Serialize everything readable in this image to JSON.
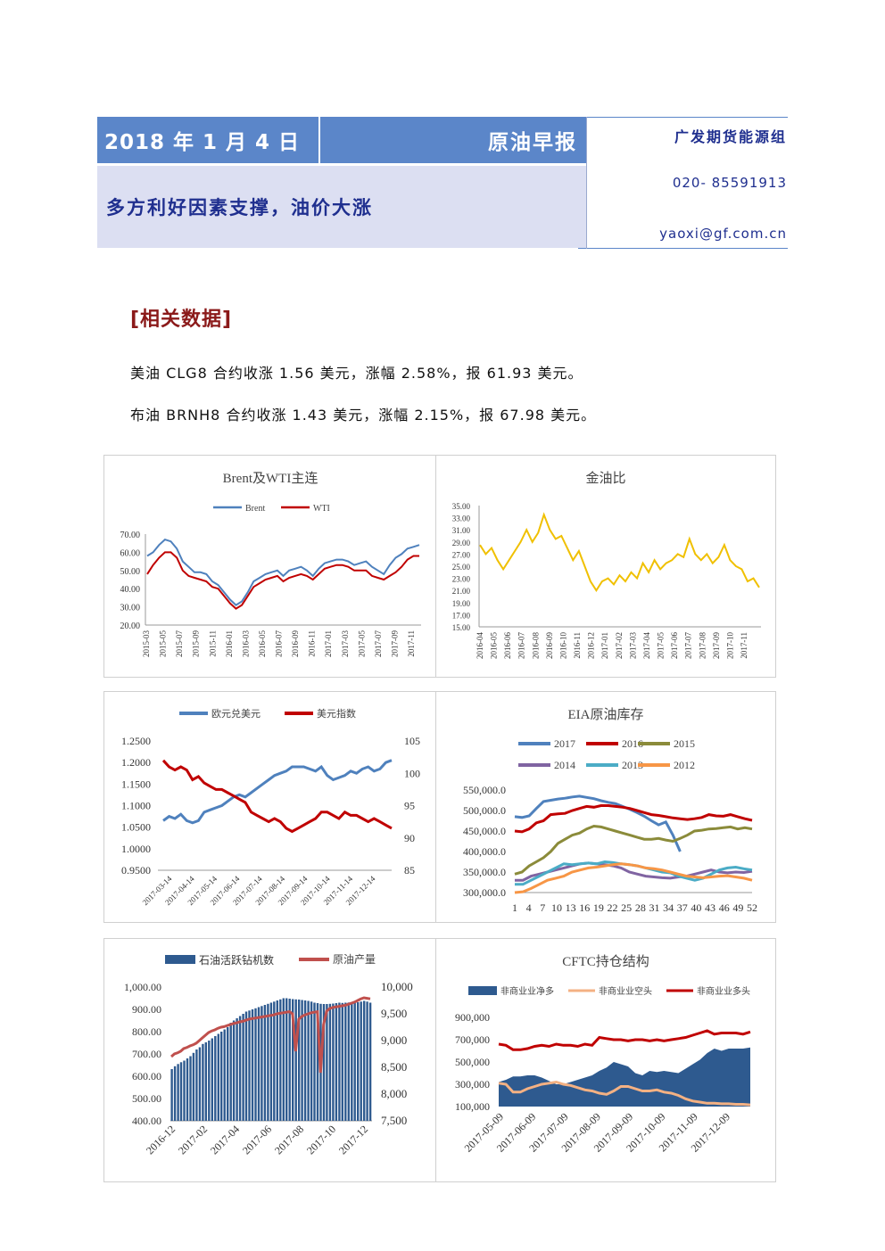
{
  "header": {
    "date": "2018 年 1 月 4 日",
    "title": "原油早报",
    "subtitle": "多方利好因素支撑，油价大涨",
    "org": "广发期货能源组",
    "phone": "020- 85591913",
    "email": "yaoxi@gf.com.cn",
    "colors": {
      "bar": "#5b86c9",
      "sub_bg": "#dcdff2",
      "text": "#1f2f8f"
    }
  },
  "section": {
    "title": "[相关数据]"
  },
  "paragraphs": [
    "美油 CLG8 合约收涨 1.56 美元，涨幅 2.58%，报 61.93 美元。",
    "布油 BRNH8 合约收涨 1.43 美元，涨幅 2.15%，报 67.98 美元。"
  ],
  "chart_data": [
    {
      "type": "line",
      "title": "Brent及WTI主连",
      "series": [
        {
          "name": "Brent",
          "color": "#4f81bd",
          "values": [
            58,
            60,
            64,
            67,
            66,
            62,
            55,
            52,
            49,
            49,
            48,
            44,
            42,
            38,
            34,
            31,
            33,
            38,
            44,
            46,
            48,
            49,
            50,
            47,
            50,
            51,
            52,
            50,
            47,
            51,
            54,
            55,
            56,
            56,
            55,
            53,
            54,
            55,
            52,
            50,
            48,
            53,
            57,
            59,
            62,
            63,
            64
          ]
        },
        {
          "name": "WTI",
          "color": "#c00000",
          "values": [
            48,
            53,
            57,
            60,
            60,
            57,
            50,
            47,
            46,
            45,
            44,
            41,
            40,
            36,
            32,
            29,
            31,
            36,
            41,
            43,
            45,
            46,
            47,
            44,
            46,
            47,
            48,
            47,
            45,
            48,
            51,
            52,
            53,
            53,
            52,
            50,
            50,
            50,
            47,
            46,
            45,
            47,
            49,
            52,
            56,
            58,
            58
          ]
        }
      ],
      "x_ticks": [
        "2015-03",
        "2015-05",
        "2015-07",
        "2015-09",
        "2015-11",
        "2016-01",
        "2016-03",
        "2016-05",
        "2016-07",
        "2016-09",
        "2016-11",
        "2017-01",
        "2017-03",
        "2017-05",
        "2017-07",
        "2017-09",
        "2017-11"
      ],
      "y_ticks": [
        "70.00",
        "60.00",
        "50.00",
        "40.00",
        "30.00",
        "20.00"
      ],
      "ylim": [
        20,
        70
      ],
      "legend": "top"
    },
    {
      "type": "line",
      "title": "金油比",
      "series": [
        {
          "name": "",
          "color": "#f0c000",
          "values": [
            28.5,
            27,
            28,
            26,
            24.5,
            26,
            27.5,
            29,
            31,
            29,
            30.5,
            33.5,
            31,
            29.5,
            30,
            28,
            26,
            27.5,
            25,
            22.5,
            21,
            22.5,
            23,
            22,
            23.5,
            22.5,
            24,
            23,
            25.5,
            24,
            26,
            24.5,
            25.5,
            26,
            27,
            26.5,
            29.5,
            27,
            26,
            27,
            25.5,
            26.5,
            28.5,
            26,
            25,
            24.5,
            22.5,
            23,
            21.5
          ]
        }
      ],
      "x_ticks": [
        "2016-04",
        "2016-05",
        "2016-06",
        "2016-07",
        "2016-08",
        "2016-09",
        "2016-10",
        "2016-11",
        "2016-12",
        "2017-01",
        "2017-02",
        "2017-03",
        "2017-04",
        "2017-05",
        "2017-06",
        "2017-07",
        "2017-08",
        "2017-09",
        "2017-10",
        "2017-11"
      ],
      "y_ticks": [
        "35.00",
        "33.00",
        "31.00",
        "29.00",
        "27.00",
        "25.00",
        "23.00",
        "21.00",
        "19.00",
        "17.00",
        "15.00"
      ],
      "ylim": [
        15,
        35
      ]
    },
    {
      "type": "line",
      "title": "",
      "series": [
        {
          "name": "欧元兑美元",
          "color": "#4f81bd",
          "axis": "left",
          "values": [
            1.065,
            1.075,
            1.07,
            1.08,
            1.065,
            1.06,
            1.065,
            1.085,
            1.09,
            1.095,
            1.1,
            1.11,
            1.12,
            1.125,
            1.12,
            1.13,
            1.14,
            1.15,
            1.16,
            1.17,
            1.175,
            1.18,
            1.19,
            1.19,
            1.19,
            1.185,
            1.18,
            1.19,
            1.17,
            1.16,
            1.165,
            1.17,
            1.18,
            1.175,
            1.185,
            1.19,
            1.18,
            1.185,
            1.2,
            1.205
          ]
        },
        {
          "name": "美元指数",
          "color": "#c00000",
          "axis": "right",
          "values": [
            102,
            101,
            100.5,
            101,
            100.5,
            99,
            99.5,
            98.5,
            98,
            97.5,
            97.5,
            97,
            96.5,
            96,
            95.5,
            94,
            93.5,
            93,
            92.5,
            93,
            92.5,
            91.5,
            91,
            91.5,
            92,
            92.5,
            93,
            94,
            94,
            93.5,
            93,
            94,
            93.5,
            93.5,
            93,
            92.5,
            93,
            92.5,
            92,
            91.5
          ]
        }
      ],
      "x_ticks": [
        "2017-03-14",
        "2017-04-14",
        "2017-05-14",
        "2017-06-14",
        "2017-07-14",
        "2017-08-14",
        "2017-09-14",
        "2017-10-14",
        "2017-11-14",
        "2017-12-14"
      ],
      "y_ticks_left": [
        "1.2500",
        "1.2000",
        "1.1500",
        "1.1000",
        "1.0500",
        "1.0000",
        "0.9500"
      ],
      "y_ticks_right": [
        "105",
        "100",
        "95",
        "90",
        "85"
      ],
      "ylim_left": [
        0.95,
        1.25
      ],
      "ylim_right": [
        85,
        105
      ],
      "legend": "top"
    },
    {
      "type": "line",
      "title": "EIA原油库存",
      "series": [
        {
          "name": "2017",
          "color": "#4f81bd",
          "values": [
            485,
            483,
            487,
            505,
            522,
            525,
            528,
            530,
            533,
            535,
            532,
            529,
            524,
            520,
            517,
            510,
            503,
            495,
            486,
            475,
            465,
            472,
            440,
            400,
            null,
            null,
            null,
            null,
            null,
            null,
            null,
            null,
            null,
            null
          ]
        },
        {
          "name": "2016",
          "color": "#c00000",
          "values": [
            450,
            448,
            455,
            470,
            475,
            490,
            492,
            493,
            500,
            505,
            510,
            508,
            512,
            512,
            510,
            508,
            505,
            500,
            495,
            490,
            488,
            485,
            482,
            480,
            478,
            480,
            483,
            490,
            487,
            486,
            490,
            485,
            480,
            476
          ]
        },
        {
          "name": "2015",
          "color": "#8b8b3a",
          "values": [
            345,
            350,
            365,
            375,
            385,
            400,
            420,
            430,
            440,
            445,
            455,
            462,
            460,
            455,
            450,
            445,
            440,
            435,
            430,
            430,
            432,
            428,
            425,
            432,
            440,
            450,
            452,
            455,
            456,
            458,
            460,
            455,
            458,
            455
          ]
        },
        {
          "name": "2014",
          "color": "#8064a2",
          "values": [
            330,
            330,
            340,
            345,
            350,
            355,
            360,
            365,
            370,
            372,
            370,
            368,
            365,
            360,
            350,
            345,
            340,
            338,
            336,
            335,
            338,
            340,
            345,
            350,
            355,
            350,
            348,
            350,
            349,
            352
          ]
        },
        {
          "name": "2013",
          "color": "#4bacc6",
          "values": [
            320,
            320,
            330,
            340,
            350,
            360,
            370,
            368,
            370,
            372,
            370,
            375,
            373,
            370,
            368,
            365,
            360,
            355,
            350,
            348,
            340,
            335,
            330,
            335,
            345,
            355,
            360,
            362,
            358,
            355
          ]
        },
        {
          "name": "2012",
          "color": "#f79646",
          "values": [
            300,
            302,
            310,
            320,
            330,
            335,
            340,
            350,
            355,
            360,
            362,
            365,
            368,
            370,
            368,
            365,
            360,
            358,
            355,
            350,
            345,
            340,
            338,
            336,
            338,
            340,
            341,
            338,
            335,
            330
          ]
        }
      ],
      "x_ticks": [
        "1",
        "4",
        "7",
        "10",
        "13",
        "16",
        "19",
        "22",
        "25",
        "28",
        "31",
        "34",
        "37",
        "40",
        "43",
        "46",
        "49",
        "52"
      ],
      "y_ticks": [
        "550,000.0",
        "500,000.0",
        "450,000.0",
        "400,000.0",
        "350,000.0",
        "300,000.0"
      ],
      "ylim": [
        300,
        550
      ],
      "legend": "top"
    },
    {
      "type": "bar",
      "title": "",
      "series": [
        {
          "name": "石油活跃钻机数",
          "color": "#2e5a8f",
          "axis": "left",
          "values": [
            632,
            645,
            655,
            663,
            670,
            680,
            690,
            705,
            720,
            730,
            745,
            752,
            760,
            770,
            780,
            790,
            800,
            810,
            820,
            840,
            850,
            860,
            870,
            880,
            890,
            895,
            900,
            905,
            910,
            915,
            920,
            925,
            930,
            935,
            940,
            945,
            950,
            950,
            948,
            946,
            945,
            944,
            942,
            940,
            938,
            935,
            930,
            928,
            925,
            924,
            924,
            925,
            926,
            928,
            930,
            929,
            930,
            931,
            930,
            930,
            932,
            935,
            938,
            935,
            930
          ]
        },
        {
          "name": "原油产量",
          "color": "#c0504d",
          "axis": "right",
          "values": [
            8700,
            8750,
            8770,
            8800,
            8850,
            8870,
            8900,
            8920,
            8950,
            9000,
            9050,
            9100,
            9150,
            9180,
            9200,
            9230,
            9250,
            9260,
            9280,
            9300,
            9320,
            9330,
            9350,
            9360,
            9380,
            9400,
            9410,
            9420,
            9430,
            9440,
            9450,
            9460,
            9470,
            9480,
            9500,
            9510,
            9520,
            9530,
            9540,
            9500,
            8800,
            9400,
            9450,
            9480,
            9500,
            9520,
            9530,
            9540,
            8400,
            9300,
            9550,
            9600,
            9620,
            9630,
            9640,
            9650,
            9660,
            9680,
            9700,
            9720,
            9750,
            9780,
            9800,
            9790,
            9780
          ]
        }
      ],
      "x_ticks": [
        "2016-12",
        "2017-02",
        "2017-04",
        "2017-06",
        "2017-08",
        "2017-10",
        "2017-12"
      ],
      "y_ticks_left": [
        "1,000.00",
        "900.00",
        "800.00",
        "700.00",
        "600.00",
        "500.00",
        "400.00"
      ],
      "y_ticks_right": [
        "10,000",
        "9,500",
        "9,000",
        "8,500",
        "8,000",
        "7,500"
      ],
      "ylim_left": [
        400,
        1000
      ],
      "ylim_right": [
        7500,
        10000
      ],
      "legend": "top"
    },
    {
      "type": "area",
      "title": "CFTC持仓结构",
      "series": [
        {
          "name": "非商业业净多",
          "color": "#2e5a8f",
          "values": [
            320,
            340,
            370,
            370,
            380,
            380,
            360,
            330,
            300,
            300,
            320,
            340,
            360,
            380,
            420,
            450,
            500,
            480,
            460,
            400,
            380,
            420,
            410,
            420,
            410,
            400,
            440,
            480,
            520,
            580,
            620,
            600,
            620,
            620,
            620,
            630
          ]
        },
        {
          "name": "非商业业空头",
          "color": "#f4b183",
          "values": [
            310,
            300,
            230,
            230,
            260,
            280,
            300,
            310,
            320,
            300,
            290,
            270,
            250,
            240,
            220,
            210,
            240,
            280,
            280,
            260,
            240,
            240,
            250,
            230,
            220,
            200,
            170,
            150,
            140,
            130,
            130,
            125,
            125,
            120,
            120,
            115
          ]
        },
        {
          "name": "非商业业多头",
          "color": "#c00000",
          "values": [
            660,
            650,
            610,
            610,
            620,
            640,
            650,
            640,
            660,
            650,
            650,
            640,
            660,
            650,
            720,
            710,
            700,
            700,
            690,
            700,
            700,
            690,
            700,
            690,
            700,
            710,
            720,
            740,
            760,
            780,
            750,
            760,
            760,
            760,
            750,
            770
          ]
        }
      ],
      "x_ticks": [
        "2017-05-09",
        "2017-06-09",
        "2017-07-09",
        "2017-08-09",
        "2017-09-09",
        "2017-10-09",
        "2017-11-09",
        "2017-12-09"
      ],
      "y_ticks": [
        "900,000",
        "700,000",
        "500,000",
        "300,000",
        "100,000"
      ],
      "ylim": [
        100,
        900
      ],
      "legend": "top"
    }
  ]
}
